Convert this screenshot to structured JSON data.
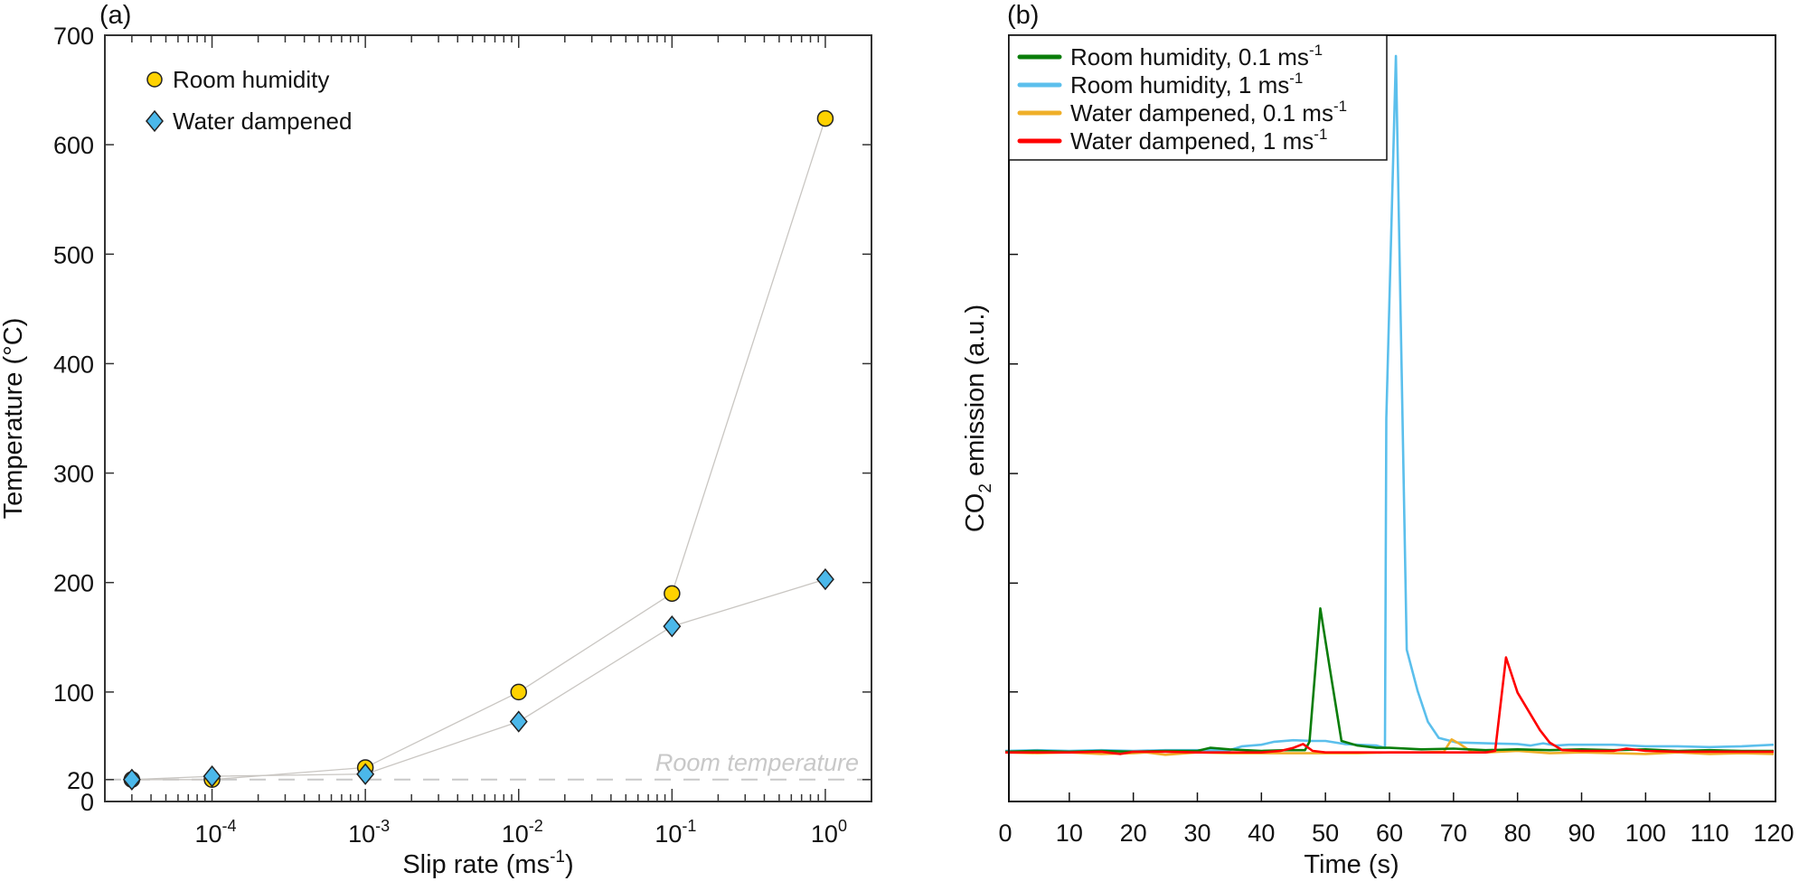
{
  "chart_data": [
    {
      "type": "scatter",
      "panel_label": "(a)",
      "title": "",
      "xlabel": "Slip rate (ms",
      "xlabel_sup": "-1",
      "xlabel_end": ")",
      "ylabel": "Temperature (°C)",
      "xscale": "log",
      "xlim": [
        2e-05,
        2
      ],
      "ylim": [
        0,
        700
      ],
      "x_ticks": [
        {
          "value": 0.0001,
          "base": "10",
          "exp": "-4"
        },
        {
          "value": 0.001,
          "base": "10",
          "exp": "-3"
        },
        {
          "value": 0.01,
          "base": "10",
          "exp": "-2"
        },
        {
          "value": 0.1,
          "base": "10",
          "exp": "-1"
        },
        {
          "value": 1,
          "base": "10",
          "exp": "0"
        }
      ],
      "y_ticks": [
        0,
        20,
        100,
        200,
        300,
        400,
        500,
        600,
        700
      ],
      "legend_position": "top-left",
      "series": [
        {
          "name": "Room humidity",
          "marker": "circle",
          "color": "#ffd200",
          "x": [
            3e-05,
            0.0001,
            0.001,
            0.01,
            0.1,
            1
          ],
          "y": [
            20,
            20,
            31,
            100,
            190,
            624
          ]
        },
        {
          "name": "Water dampened",
          "marker": "diamond",
          "color": "#4bb8ea",
          "x": [
            3e-05,
            0.0001,
            0.001,
            0.01,
            0.1,
            1
          ],
          "y": [
            20,
            23,
            25,
            73,
            160,
            203
          ]
        }
      ],
      "reference_line": {
        "y": 20,
        "label": "Room temperature",
        "style": "dashed",
        "color": "#c8c8c8"
      },
      "connector_color": "#c9c6c2"
    },
    {
      "type": "line",
      "panel_label": "(b)",
      "title": "",
      "xlabel": "Time (s)",
      "ylabel_pre": "CO",
      "ylabel_sub": "2",
      "ylabel_post": " emission (a.u.)",
      "xlim": [
        0,
        120
      ],
      "ylim": [
        0,
        100
      ],
      "x_ticks": [
        0,
        10,
        20,
        30,
        40,
        50,
        60,
        70,
        80,
        90,
        100,
        110,
        120
      ],
      "y_ticks_unlabeled": [
        14.3,
        28.5,
        42.8,
        57.1,
        71.4,
        85.7
      ],
      "legend_position": "top-left",
      "series": [
        {
          "name": "Room humidity, 0.1 ms",
          "unit_sup": "-1",
          "color": "#0a7d0a",
          "x": [
            0,
            5,
            10,
            15,
            20,
            25,
            30,
            32,
            35,
            40,
            44,
            46.8,
            47.5,
            49.2,
            50.7,
            52.5,
            55,
            58,
            60,
            65,
            70,
            75,
            80,
            85,
            90,
            95,
            100,
            105,
            110,
            115,
            120
          ],
          "y": [
            6.5,
            6.6,
            6.5,
            6.6,
            6.5,
            6.6,
            6.6,
            7.0,
            6.8,
            6.6,
            6.7,
            6.7,
            7.8,
            25.2,
            17.3,
            7.9,
            7.3,
            7.0,
            7.0,
            6.8,
            6.9,
            6.7,
            6.8,
            6.7,
            6.8,
            6.7,
            6.8,
            6.6,
            6.7,
            6.6,
            6.6
          ]
        },
        {
          "name": "Room humidity, 1 ms",
          "unit_sup": "-1",
          "color": "#5bbfec",
          "x": [
            0,
            5,
            10,
            15,
            20,
            25,
            30,
            35,
            37,
            40,
            42,
            45,
            48,
            50,
            53,
            55,
            58,
            59.3,
            59.5,
            61,
            62.7,
            64.4,
            66,
            67.7,
            70.5,
            75,
            80,
            82,
            84,
            86,
            88,
            90,
            95,
            100,
            105,
            110,
            115,
            120
          ],
          "y": [
            6.6,
            6.7,
            6.6,
            6.7,
            6.6,
            6.7,
            6.7,
            6.7,
            7.2,
            7.4,
            7.8,
            8.0,
            7.9,
            7.9,
            7.5,
            7.4,
            7.3,
            7.0,
            50,
            97.3,
            19.8,
            14.4,
            10.4,
            8.3,
            7.7,
            7.6,
            7.5,
            7.3,
            7.6,
            7.3,
            7.4,
            7.4,
            7.4,
            7.2,
            7.2,
            7.1,
            7.2,
            7.4
          ]
        },
        {
          "name": "Water dampened, 0.1 ms",
          "unit_sup": "-1",
          "color": "#efaf28",
          "x": [
            0,
            5,
            10,
            15,
            20,
            22,
            25,
            30,
            35,
            40,
            45,
            50,
            55,
            60,
            65,
            68.5,
            69.7,
            71,
            72.8,
            75,
            80,
            85,
            90,
            95,
            100,
            105,
            110,
            115,
            120
          ],
          "y": [
            6.4,
            6.3,
            6.4,
            6.2,
            6.3,
            6.4,
            6.1,
            6.4,
            6.3,
            6.3,
            6.3,
            6.3,
            6.3,
            6.4,
            6.4,
            6.5,
            8.1,
            7.5,
            6.5,
            6.4,
            6.6,
            6.3,
            6.4,
            6.3,
            6.2,
            6.4,
            6.2,
            6.3,
            6.2
          ]
        },
        {
          "name": "Water dampened, 1 ms",
          "unit_sup": "-1",
          "color": "#ff0000",
          "x": [
            0,
            5,
            10,
            15,
            18,
            20,
            25,
            30,
            35,
            40,
            43,
            45,
            46.5,
            48,
            50,
            55,
            60,
            65,
            70,
            75,
            76.5,
            78.2,
            80,
            83.5,
            85,
            87,
            90,
            95,
            97,
            100,
            105,
            110,
            115,
            120
          ],
          "y": [
            6.4,
            6.4,
            6.4,
            6.5,
            6.2,
            6.5,
            6.5,
            6.4,
            6.4,
            6.4,
            6.6,
            7.0,
            7.5,
            6.6,
            6.4,
            6.4,
            6.4,
            6.4,
            6.4,
            6.4,
            6.6,
            18.8,
            14.2,
            9.3,
            7.7,
            6.7,
            6.6,
            6.6,
            6.9,
            6.6,
            6.5,
            6.5,
            6.5,
            6.5
          ]
        }
      ]
    }
  ]
}
